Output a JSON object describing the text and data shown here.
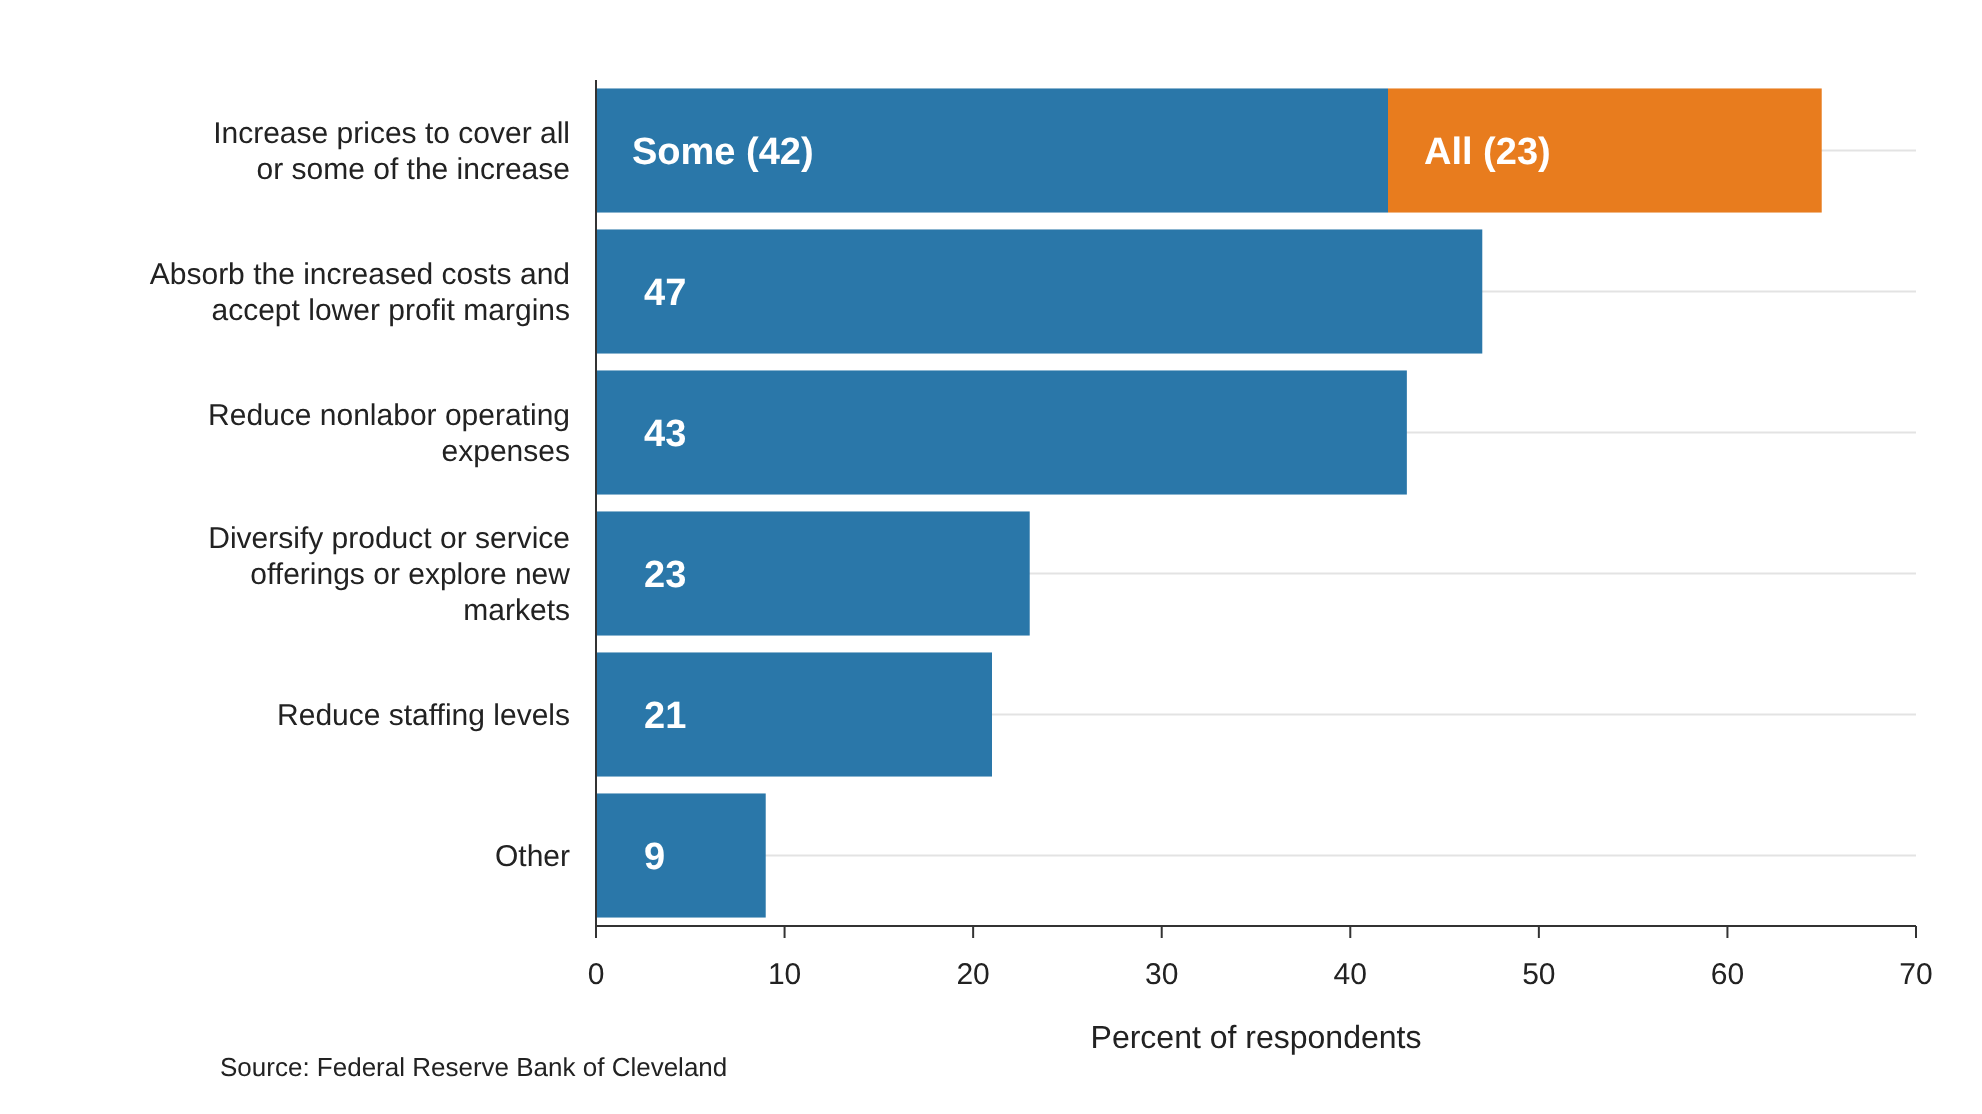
{
  "chart_data": {
    "type": "bar",
    "orientation": "horizontal",
    "stacked": true,
    "xlabel": "Percent of respondents",
    "annotations": [
      "Source: Federal Reserve Bank of Cleveland"
    ],
    "categories": [
      "Increase prices to cover all or some of the increase",
      "Absorb the increased costs and accept lower profit margins",
      "Reduce nonlabor operating expenses",
      "Diversify product or service offerings or explore new markets",
      "Reduce staffing levels",
      "Other"
    ],
    "series": [
      {
        "color": "#2a77a9",
        "values": [
          42,
          47,
          43,
          23,
          21,
          9
        ],
        "value_labels": [
          "Some (42)",
          "47",
          "43",
          "23",
          "21",
          "9"
        ]
      },
      {
        "color": "#e87c1e",
        "values": [
          23,
          null,
          null,
          null,
          null,
          null
        ],
        "value_labels": [
          "All (23)",
          null,
          null,
          null,
          null,
          null
        ]
      }
    ],
    "xlim": [
      0,
      70
    ],
    "xticks": [
      0,
      10,
      20,
      30,
      40,
      50,
      60,
      70
    ],
    "grid": "y"
  }
}
